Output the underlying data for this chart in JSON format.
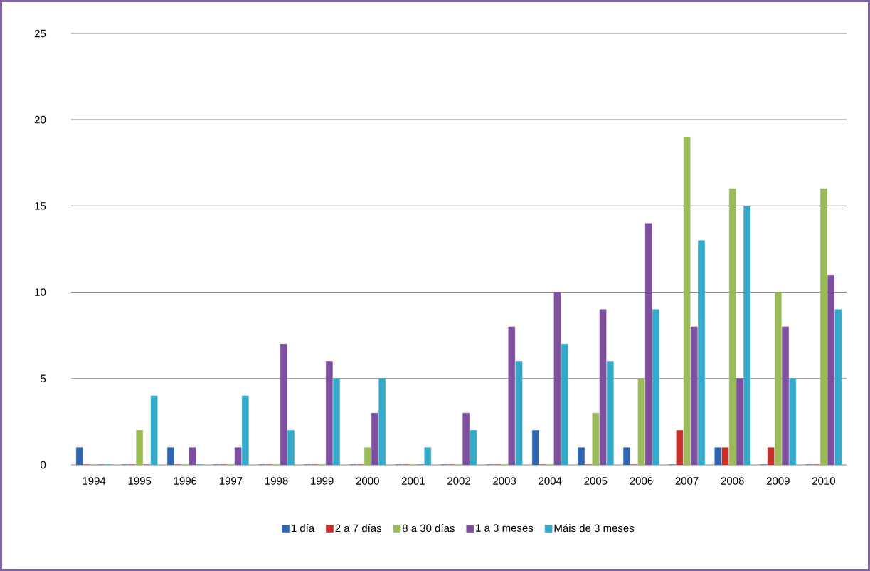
{
  "chart_data": {
    "type": "bar",
    "categories": [
      "1994",
      "1995",
      "1996",
      "1997",
      "1998",
      "1999",
      "2000",
      "2001",
      "2002",
      "2003",
      "2004",
      "2005",
      "2006",
      "2007",
      "2008",
      "2009",
      "2010"
    ],
    "series": [
      {
        "name": "1 día",
        "color": "#2f65b0",
        "values": [
          1,
          0,
          1,
          0,
          0,
          0,
          0,
          0,
          0,
          0,
          2,
          1,
          1,
          0,
          1,
          0,
          0
        ]
      },
      {
        "name": "2 a 7 días",
        "color": "#c8302c",
        "values": [
          0,
          0,
          0,
          0,
          0,
          0,
          0,
          0,
          0,
          0,
          0,
          0,
          0,
          2,
          1,
          1,
          0
        ]
      },
      {
        "name": "8 a 30 días",
        "color": "#9bbb59",
        "values": [
          0,
          2,
          0,
          0,
          0,
          0,
          1,
          0,
          0,
          0,
          0,
          3,
          5,
          19,
          16,
          10,
          16
        ]
      },
      {
        "name": "1 a 3 meses",
        "color": "#7d4f9e",
        "values": [
          0,
          0,
          1,
          1,
          7,
          6,
          3,
          0,
          3,
          8,
          10,
          9,
          14,
          8,
          5,
          8,
          11
        ]
      },
      {
        "name": "Máis de 3 meses",
        "color": "#35a9c9",
        "values": [
          0,
          4,
          0,
          4,
          2,
          5,
          5,
          1,
          2,
          6,
          7,
          6,
          9,
          13,
          15,
          5,
          9
        ]
      }
    ],
    "ylim": [
      0,
      25
    ],
    "yticks": [
      0,
      5,
      10,
      15,
      20,
      25
    ],
    "grid": "y",
    "legend": "bottom"
  }
}
